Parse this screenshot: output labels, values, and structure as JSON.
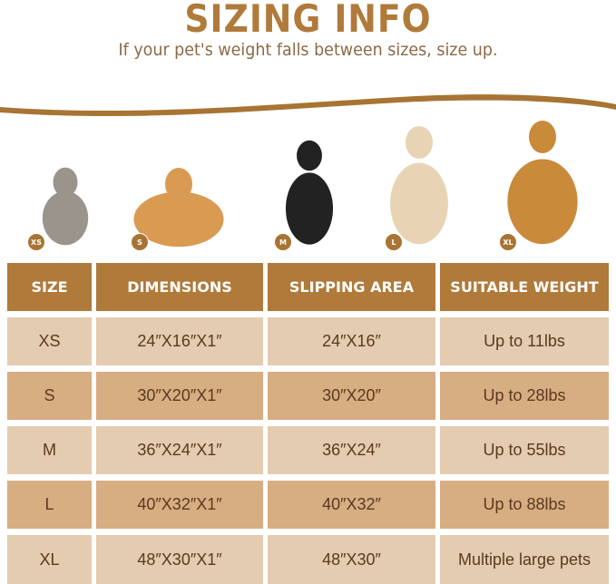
{
  "title": "SIZING INFO",
  "subtitle": "If your pet's weight falls between sizes, size up.",
  "colors": {
    "accent": "#b07a3a",
    "row_light": "#e4ccb1",
    "row_dark": "#d7ad82",
    "text": "#5a3a1f"
  },
  "pets": [
    {
      "badge": "XS",
      "animal": "cat"
    },
    {
      "badge": "S",
      "animal": "corgi"
    },
    {
      "badge": "M",
      "animal": "border collie"
    },
    {
      "badge": "L",
      "animal": "labrador"
    },
    {
      "badge": "XL",
      "animal": "golden retriever"
    }
  ],
  "table": {
    "headers": [
      "SIZE",
      "DIMENSIONS",
      "SLIPPING AREA",
      "SUITABLE WEIGHT"
    ],
    "rows": [
      [
        "XS",
        "24″X16″X1″",
        "24″X16″",
        "Up to 11lbs"
      ],
      [
        "S",
        "30″X20″X1″",
        "30″X20″",
        "Up to 28lbs"
      ],
      [
        "M",
        "36″X24″X1″",
        "36″X24″",
        "Up to 55lbs"
      ],
      [
        "L",
        "40″X32″X1″",
        "40″X32″",
        "Up to 88lbs"
      ],
      [
        "XL",
        "48″X30″X1″",
        "48″X30″",
        "Multiple large pets"
      ]
    ]
  }
}
